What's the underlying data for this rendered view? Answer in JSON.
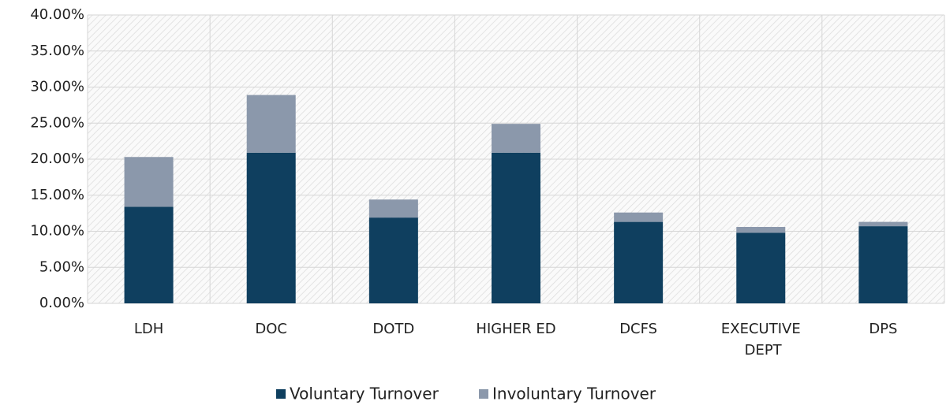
{
  "chart_data": {
    "type": "stacked_bar",
    "categories": [
      "LDH",
      "DOC",
      "DOTD",
      "HIGHER ED",
      "DCFS",
      "EXECUTIVE DEPT",
      "DPS"
    ],
    "series": [
      {
        "name": "Voluntary Turnover",
        "color": "#0f3f5f",
        "values": [
          13.4,
          20.9,
          11.9,
          20.9,
          11.3,
          9.8,
          10.7
        ]
      },
      {
        "name": "Involuntary Turnover",
        "color": "#8b98ab",
        "values": [
          6.9,
          8.0,
          2.5,
          4.0,
          1.3,
          0.8,
          0.6
        ]
      }
    ],
    "ylim": [
      0,
      40
    ],
    "yticks": [
      {
        "value": 0,
        "label": "0.00%"
      },
      {
        "value": 5,
        "label": "5.00%"
      },
      {
        "value": 10,
        "label": "10.00%"
      },
      {
        "value": 15,
        "label": "15.00%"
      },
      {
        "value": 20,
        "label": "20.00%"
      },
      {
        "value": 25,
        "label": "25.00%"
      },
      {
        "value": 30,
        "label": "30.00%"
      },
      {
        "value": 35,
        "label": "35.00%"
      },
      {
        "value": 40,
        "label": "40.00%"
      }
    ],
    "grid": true,
    "legend": "bottom"
  }
}
